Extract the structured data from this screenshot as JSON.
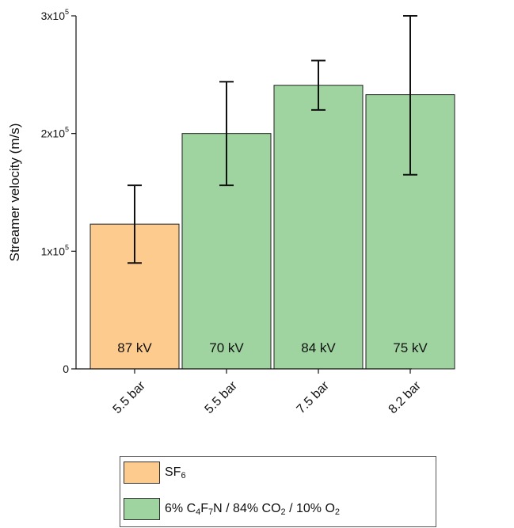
{
  "chart_data": {
    "type": "bar",
    "title": "",
    "ylabel": "Streamer velocity (m/s)",
    "xlabel": "",
    "ylim": [
      0,
      300000
    ],
    "y_ticks": [
      {
        "value": 0,
        "mantissa": "0",
        "exponent": ""
      },
      {
        "value": 100000,
        "mantissa": "1x10",
        "exponent": "5"
      },
      {
        "value": 200000,
        "mantissa": "2x10",
        "exponent": "5"
      },
      {
        "value": 300000,
        "mantissa": "3x10",
        "exponent": "5"
      }
    ],
    "categories": [
      "5.5 bar",
      "5.5 bar",
      "7.5 bar",
      "8.2 bar"
    ],
    "values": [
      123000,
      200000,
      241000,
      233000
    ],
    "error_low": [
      90000,
      156000,
      220000,
      165000
    ],
    "error_high": [
      156000,
      244000,
      262000,
      300000
    ],
    "bar_labels": [
      "87 kV",
      "70 kV",
      "84 kV",
      "75 kV"
    ],
    "series_index": [
      0,
      1,
      1,
      1
    ],
    "series": [
      {
        "name_parts": [
          "SF",
          "6"
        ],
        "color": "#fdcb8d"
      },
      {
        "name_parts": [
          "6% C",
          "4",
          "F",
          "7",
          "N / 84% CO",
          "2",
          " / 10% O",
          "2"
        ],
        "color": "#9fd4a0"
      }
    ],
    "grid": false,
    "legend_position": "bottom"
  }
}
